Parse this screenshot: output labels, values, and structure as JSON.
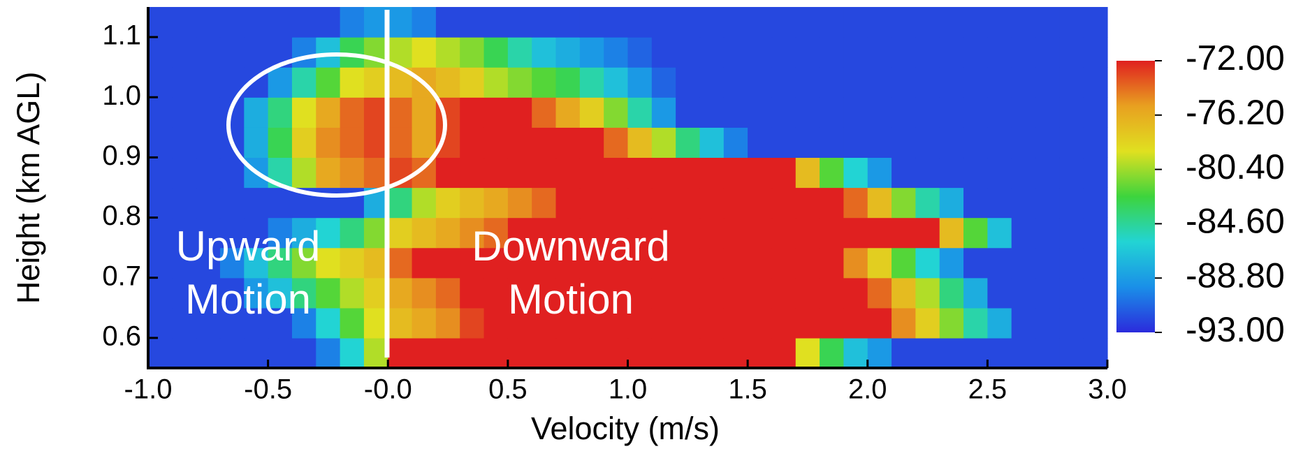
{
  "chart_data": {
    "type": "heatmap",
    "xlabel": "Velocity (m/s)",
    "ylabel": "Height (km AGL)",
    "xlim": [
      -1.0,
      3.0
    ],
    "ylim": [
      0.55,
      1.15
    ],
    "xticks": [
      {
        "value": -1,
        "label": "-1.0"
      },
      {
        "value": -0.5,
        "label": "-0.5"
      },
      {
        "value": 0,
        "label": "-0.0"
      },
      0.5,
      {
        "value": 1,
        "label": "1.0"
      },
      1.5,
      {
        "value": 2,
        "label": "2.0"
      },
      2.5,
      {
        "value": 3,
        "label": "3.0"
      }
    ],
    "yticks": [
      0.6,
      0.7,
      0.8,
      0.9,
      {
        "value": 1,
        "label": "1.0"
      },
      1.1
    ],
    "xbins": [
      -1.0,
      -0.9,
      -0.8,
      -0.7,
      -0.6,
      -0.5,
      -0.4,
      -0.3,
      -0.2,
      -0.1,
      0.0,
      0.1,
      0.2,
      0.3,
      0.4,
      0.5,
      0.6,
      0.7,
      0.8,
      0.9,
      1.0,
      1.1,
      1.2,
      1.3,
      1.4,
      1.5,
      1.6,
      1.7,
      1.8,
      1.9,
      2.0,
      2.1,
      2.2,
      2.3,
      2.4,
      2.5,
      2.6,
      2.7,
      2.8,
      2.9,
      3.0
    ],
    "ybins": [
      0.55,
      0.6,
      0.65,
      0.7,
      0.75,
      0.8,
      0.85,
      0.9,
      0.95,
      1.0,
      1.05,
      1.1,
      1.15
    ],
    "values": [
      [
        -92,
        -92,
        -92,
        -92,
        -92,
        -92,
        -92,
        -90,
        -86,
        -80,
        -72,
        -72,
        -72,
        -72,
        -72,
        -72,
        -72,
        -72,
        -72,
        -72,
        -72,
        -72,
        -72,
        -72,
        -72,
        -72,
        -72,
        -79,
        -83,
        -87,
        -89,
        -92,
        -92,
        -92,
        -92,
        -92,
        -92,
        -92,
        -92,
        -92
      ],
      [
        -92,
        -92,
        -92,
        -92,
        -92,
        -92,
        -90,
        -86,
        -82,
        -79,
        -77,
        -76,
        -75,
        -73,
        -72,
        -72,
        -72,
        -72,
        -72,
        -72,
        -72,
        -72,
        -72,
        -72,
        -72,
        -72,
        -72,
        -72,
        -72,
        -72,
        -72,
        -75,
        -78,
        -81,
        -85,
        -88,
        -92,
        -92,
        -92,
        -92
      ],
      [
        -92,
        -92,
        -92,
        -92,
        -89,
        -87,
        -84,
        -82,
        -80,
        -78,
        -76,
        -75,
        -74,
        -72,
        -72,
        -72,
        -72,
        -72,
        -72,
        -72,
        -72,
        -72,
        -72,
        -72,
        -72,
        -72,
        -72,
        -72,
        -72,
        -72,
        -74,
        -77,
        -80,
        -84,
        -88,
        -92,
        -92,
        -92,
        -92,
        -92
      ],
      [
        -92,
        -92,
        -92,
        -90,
        -87,
        -84,
        -81,
        -79,
        -78,
        -77,
        -74,
        -72,
        -72,
        -72,
        -72,
        -72,
        -72,
        -72,
        -72,
        -72,
        -72,
        -72,
        -72,
        -72,
        -72,
        -72,
        -72,
        -72,
        -72,
        -75,
        -78,
        -82,
        -86,
        -89,
        -92,
        -92,
        -92,
        -92,
        -92,
        -92
      ],
      [
        -92,
        -92,
        -92,
        -92,
        -92,
        -90,
        -88,
        -86,
        -84,
        -81,
        -78,
        -77,
        -76,
        -75,
        -74,
        -72,
        -72,
        -72,
        -72,
        -72,
        -72,
        -72,
        -72,
        -72,
        -72,
        -72,
        -72,
        -72,
        -72,
        -72,
        -72,
        -72,
        -72,
        -77,
        -82,
        -87,
        -92,
        -92,
        -92,
        -92
      ],
      [
        -92,
        -92,
        -92,
        -92,
        -92,
        -92,
        -92,
        -92,
        -92,
        -88,
        -84,
        -80,
        -78,
        -77,
        -76,
        -75,
        -74,
        -72,
        -72,
        -72,
        -72,
        -72,
        -72,
        -72,
        -72,
        -72,
        -72,
        -72,
        -72,
        -74,
        -77,
        -81,
        -85,
        -88,
        -92,
        -92,
        -92,
        -92,
        -92,
        -92
      ],
      [
        -92,
        -92,
        -92,
        -92,
        -89,
        -85,
        -80,
        -76,
        -75,
        -74,
        -73,
        -74,
        -72,
        -72,
        -72,
        -72,
        -72,
        -72,
        -72,
        -72,
        -72,
        -72,
        -72,
        -72,
        -72,
        -72,
        -72,
        -77,
        -82,
        -86,
        -89,
        -92,
        -92,
        -92,
        -92,
        -92,
        -92,
        -92,
        -92,
        -92
      ],
      [
        -92,
        -92,
        -92,
        -92,
        -88,
        -83,
        -78,
        -75,
        -74,
        -73,
        -74,
        -76,
        -73,
        -72,
        -72,
        -72,
        -72,
        -72,
        -72,
        -74,
        -77,
        -80,
        -84,
        -87,
        -90,
        -92,
        -92,
        -92,
        -92,
        -92,
        -92,
        -92,
        -92,
        -92,
        -92,
        -92,
        -92,
        -92,
        -92,
        -92
      ],
      [
        -92,
        -92,
        -92,
        -92,
        -88,
        -84,
        -79,
        -76,
        -74,
        -73,
        -74,
        -76,
        -73,
        -72,
        -72,
        -72,
        -74,
        -76,
        -78,
        -81,
        -85,
        -89,
        -92,
        -92,
        -92,
        -92,
        -92,
        -92,
        -92,
        -92,
        -92,
        -92,
        -92,
        -92,
        -92,
        -92,
        -92,
        -92,
        -92,
        -92
      ],
      [
        -92,
        -92,
        -92,
        -92,
        -92,
        -89,
        -85,
        -82,
        -79,
        -78,
        -77,
        -76,
        -77,
        -78,
        -80,
        -81,
        -82,
        -83,
        -85,
        -87,
        -89,
        -91,
        -92,
        -92,
        -92,
        -92,
        -92,
        -92,
        -92,
        -92,
        -92,
        -92,
        -92,
        -92,
        -92,
        -92,
        -92,
        -92,
        -92,
        -92
      ],
      [
        -92,
        -92,
        -92,
        -92,
        -92,
        -92,
        -90,
        -87,
        -83,
        -81,
        -80,
        -79,
        -80,
        -81,
        -83,
        -85,
        -87,
        -88,
        -89,
        -90,
        -91,
        -92,
        -92,
        -92,
        -92,
        -92,
        -92,
        -92,
        -92,
        -92,
        -92,
        -92,
        -92,
        -92,
        -92,
        -92,
        -92,
        -92,
        -92,
        -92
      ],
      [
        -92,
        -92,
        -92,
        -92,
        -92,
        -92,
        -92,
        -92,
        -90,
        -89,
        -89,
        -90,
        -92,
        -92,
        -92,
        -92,
        -92,
        -92,
        -92,
        -92,
        -92,
        -92,
        -92,
        -92,
        -92,
        -92,
        -92,
        -92,
        -92,
        -92,
        -92,
        -92,
        -92,
        -92,
        -92,
        -92,
        -92,
        -92,
        -92,
        -92
      ]
    ],
    "clim": [
      -93,
      -72
    ],
    "colormap": [
      "#2b2bdc",
      "#1a8fe8",
      "#22d4d4",
      "#3dd43d",
      "#e0e020",
      "#e8a020",
      "#e02020"
    ],
    "cticks": [
      {
        "value": -72,
        "label": "-72.00"
      },
      {
        "value": -76.2,
        "label": "-76.20"
      },
      {
        "value": -80.4,
        "label": "-80.40"
      },
      {
        "value": -84.6,
        "label": "-84.60"
      },
      {
        "value": -88.8,
        "label": "-88.80"
      },
      {
        "value": -93,
        "label": "-93.00"
      }
    ],
    "annotations": [
      "Upward",
      "Motion",
      "Downward",
      "Motion"
    ]
  }
}
